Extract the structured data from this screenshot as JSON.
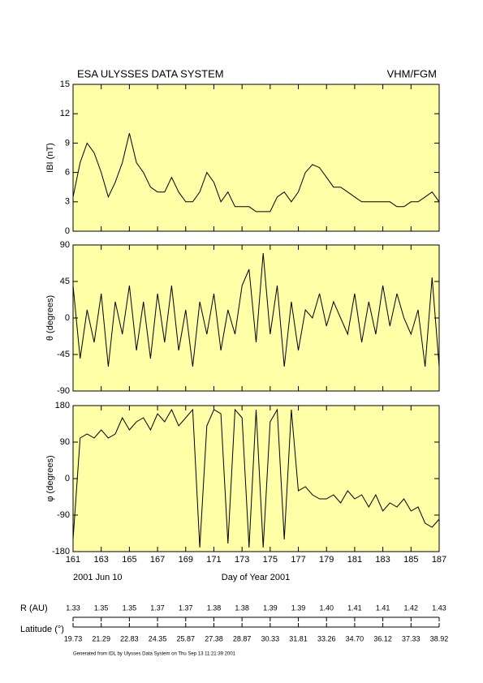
{
  "header": {
    "title": "ESA ULYSSES DATA SYSTEM",
    "instrument": "VHM/FGM"
  },
  "x_axis": {
    "label": "Day of Year 2001",
    "start_label": "2001 Jun 10",
    "xlim": [
      161,
      187
    ],
    "xticks": [
      161,
      163,
      165,
      167,
      169,
      171,
      173,
      175,
      177,
      179,
      181,
      183,
      185,
      187
    ]
  },
  "chart_data": [
    {
      "type": "line",
      "ylabel": "IBI (nT)",
      "background": "#ffffa8",
      "color": "#000000",
      "ylim": [
        0,
        15
      ],
      "yticks": [
        0,
        3,
        6,
        9,
        12,
        15
      ],
      "x": [
        161,
        161.5,
        162,
        162.5,
        163,
        163.5,
        164,
        164.5,
        165,
        165.5,
        166,
        166.5,
        167,
        167.5,
        168,
        168.5,
        169,
        169.5,
        170,
        170.5,
        171,
        171.5,
        172,
        172.5,
        173,
        173.5,
        174,
        174.5,
        175,
        175.5,
        176,
        176.5,
        177,
        177.5,
        178,
        178.5,
        179,
        179.5,
        180,
        180.5,
        181,
        181.5,
        182,
        182.5,
        183,
        183.5,
        184,
        184.5,
        185,
        185.5,
        186,
        186.5,
        187
      ],
      "values": [
        3.5,
        7,
        9,
        8,
        6,
        3.5,
        5,
        7,
        10,
        7,
        6,
        4.5,
        4,
        4,
        5.5,
        4,
        3,
        3,
        4,
        6,
        5,
        3,
        4,
        2.5,
        2.5,
        2.5,
        2,
        2,
        2,
        3.5,
        4,
        3,
        4,
        6,
        6.8,
        6.5,
        5.5,
        4.5,
        4.5,
        4,
        3.5,
        3,
        3,
        3,
        3,
        3,
        2.5,
        2.5,
        3,
        3,
        3.5,
        4,
        3
      ]
    },
    {
      "type": "line",
      "ylabel": "θ (degrees)",
      "background": "#ffffa8",
      "color": "#000000",
      "ylim": [
        -90,
        90
      ],
      "yticks": [
        -90,
        -45,
        0,
        45,
        90
      ],
      "x": [
        161,
        161.5,
        162,
        162.5,
        163,
        163.5,
        164,
        164.5,
        165,
        165.5,
        166,
        166.5,
        167,
        167.5,
        168,
        168.5,
        169,
        169.5,
        170,
        170.5,
        171,
        171.5,
        172,
        172.5,
        173,
        173.5,
        174,
        174.5,
        175,
        175.5,
        176,
        176.5,
        177,
        177.5,
        178,
        178.5,
        179,
        179.5,
        180,
        180.5,
        181,
        181.5,
        182,
        182.5,
        183,
        183.5,
        184,
        184.5,
        185,
        185.5,
        186,
        186.5,
        187
      ],
      "values": [
        40,
        -50,
        10,
        -30,
        30,
        -60,
        20,
        -20,
        40,
        -40,
        20,
        -50,
        30,
        -30,
        40,
        -40,
        10,
        -60,
        20,
        -20,
        30,
        -40,
        10,
        -20,
        40,
        60,
        -30,
        80,
        -20,
        40,
        -60,
        20,
        -40,
        10,
        0,
        30,
        -10,
        20,
        0,
        -20,
        30,
        -30,
        20,
        -20,
        40,
        -10,
        30,
        0,
        -20,
        10,
        -60,
        50,
        -60
      ]
    },
    {
      "type": "line",
      "ylabel": "φ (degrees)",
      "background": "#ffffa8",
      "color": "#000000",
      "ylim": [
        -180,
        180
      ],
      "yticks": [
        -180,
        -90,
        0,
        90,
        180
      ],
      "x": [
        161,
        161.5,
        162,
        162.5,
        163,
        163.5,
        164,
        164.5,
        165,
        165.5,
        166,
        166.5,
        167,
        167.5,
        168,
        168.5,
        169,
        169.5,
        170,
        170.5,
        171,
        171.5,
        172,
        172.5,
        173,
        173.5,
        174,
        174.5,
        175,
        175.5,
        176,
        176.5,
        177,
        177.5,
        178,
        178.5,
        179,
        179.5,
        180,
        180.5,
        181,
        181.5,
        182,
        182.5,
        183,
        183.5,
        184,
        184.5,
        185,
        185.5,
        186,
        186.5,
        187
      ],
      "values": [
        -150,
        100,
        110,
        100,
        120,
        100,
        110,
        150,
        120,
        140,
        150,
        120,
        160,
        140,
        170,
        130,
        150,
        170,
        -170,
        130,
        170,
        160,
        -160,
        170,
        150,
        -170,
        170,
        -170,
        140,
        170,
        -150,
        170,
        -30,
        -20,
        -40,
        -50,
        -50,
        -40,
        -60,
        -30,
        -50,
        -40,
        -70,
        -40,
        -80,
        -60,
        -70,
        -50,
        -80,
        -70,
        -110,
        -120,
        -100
      ]
    }
  ],
  "ephemeris": {
    "rows": [
      {
        "label": "R (AU)",
        "values": [
          "1.33",
          "1.35",
          "1.35",
          "1.37",
          "1.37",
          "1.38",
          "1.38",
          "1.39",
          "1.39",
          "1.40",
          "1.41",
          "1.41",
          "1.42",
          "1.43"
        ]
      },
      {
        "label": "Latitude (°)",
        "values": [
          "19.73",
          "21.29",
          "22.83",
          "24.35",
          "25.87",
          "27.38",
          "28.87",
          "30.33",
          "31.81",
          "33.26",
          "34.70",
          "36.12",
          "37.33",
          "38.92"
        ]
      }
    ]
  },
  "footer": "Generated from IDL by Ulysses Data System on Thu Sep 13 11:21:39 2001"
}
